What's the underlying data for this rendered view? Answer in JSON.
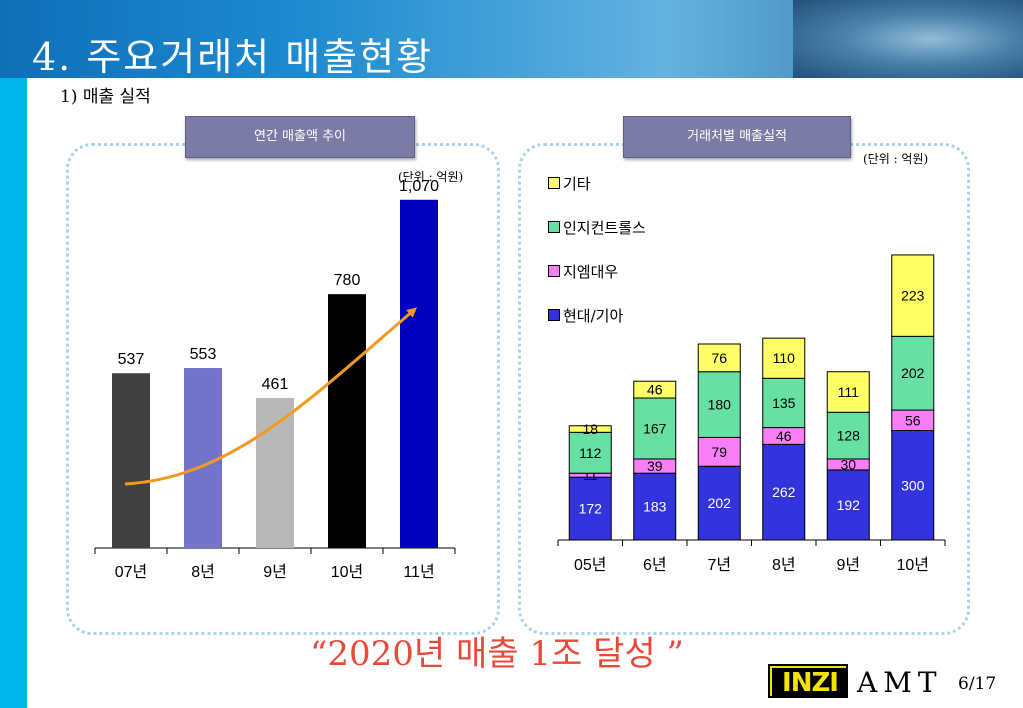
{
  "header": {
    "title": "4. 주요거래처 매출현황"
  },
  "subtitle": "1) 매출 실적",
  "left_panel": {
    "label": "연간 매출액 추이",
    "unit": "(단위 : 억원)"
  },
  "right_panel": {
    "label": "거래처별 매출실적",
    "unit": "(단위 : 억원)"
  },
  "chart_data": [
    {
      "type": "bar",
      "categories": [
        "07년",
        "8년",
        "9년",
        "10년",
        "11년"
      ],
      "values": [
        537,
        553,
        461,
        780,
        1070
      ],
      "value_labels": [
        "537",
        "553",
        "461",
        "780",
        "1,070"
      ],
      "bar_colors": [
        "#404040",
        "#7373cc",
        "#b8b8b8",
        "#000000",
        "#0000c0"
      ],
      "trend_arrow_color": "#f39a1e",
      "ylim": [
        0,
        1100
      ],
      "grid": false
    },
    {
      "type": "bar",
      "stacked": true,
      "categories": [
        "05년",
        "6년",
        "7년",
        "8년",
        "9년",
        "10년"
      ],
      "series": [
        {
          "name": "현대/기아",
          "color": "#3333dd",
          "label_color": "#ffffff",
          "values": [
            172,
            183,
            202,
            262,
            192,
            300
          ]
        },
        {
          "name": "지엠대우",
          "color": "#f77ef7",
          "label_color": "#000000",
          "values": [
            11,
            39,
            79,
            46,
            30,
            56
          ]
        },
        {
          "name": "인지컨트롤스",
          "color": "#66e0a3",
          "label_color": "#000000",
          "values": [
            112,
            167,
            180,
            135,
            128,
            202
          ]
        },
        {
          "name": "기타",
          "color": "#ffff66",
          "label_color": "#000000",
          "values": [
            18,
            46,
            76,
            110,
            111,
            223
          ]
        }
      ],
      "legend": [
        "기타",
        "인지컨트롤스",
        "지엠대우",
        "현대/기아"
      ],
      "legend_position": "top-left",
      "ylim": [
        0,
        1000
      ],
      "grid": false
    }
  ],
  "footer": {
    "slogan": "“2020년 매출 1조 달성 ”",
    "logo": "INZI",
    "company": "AMT",
    "page": "6/17"
  }
}
